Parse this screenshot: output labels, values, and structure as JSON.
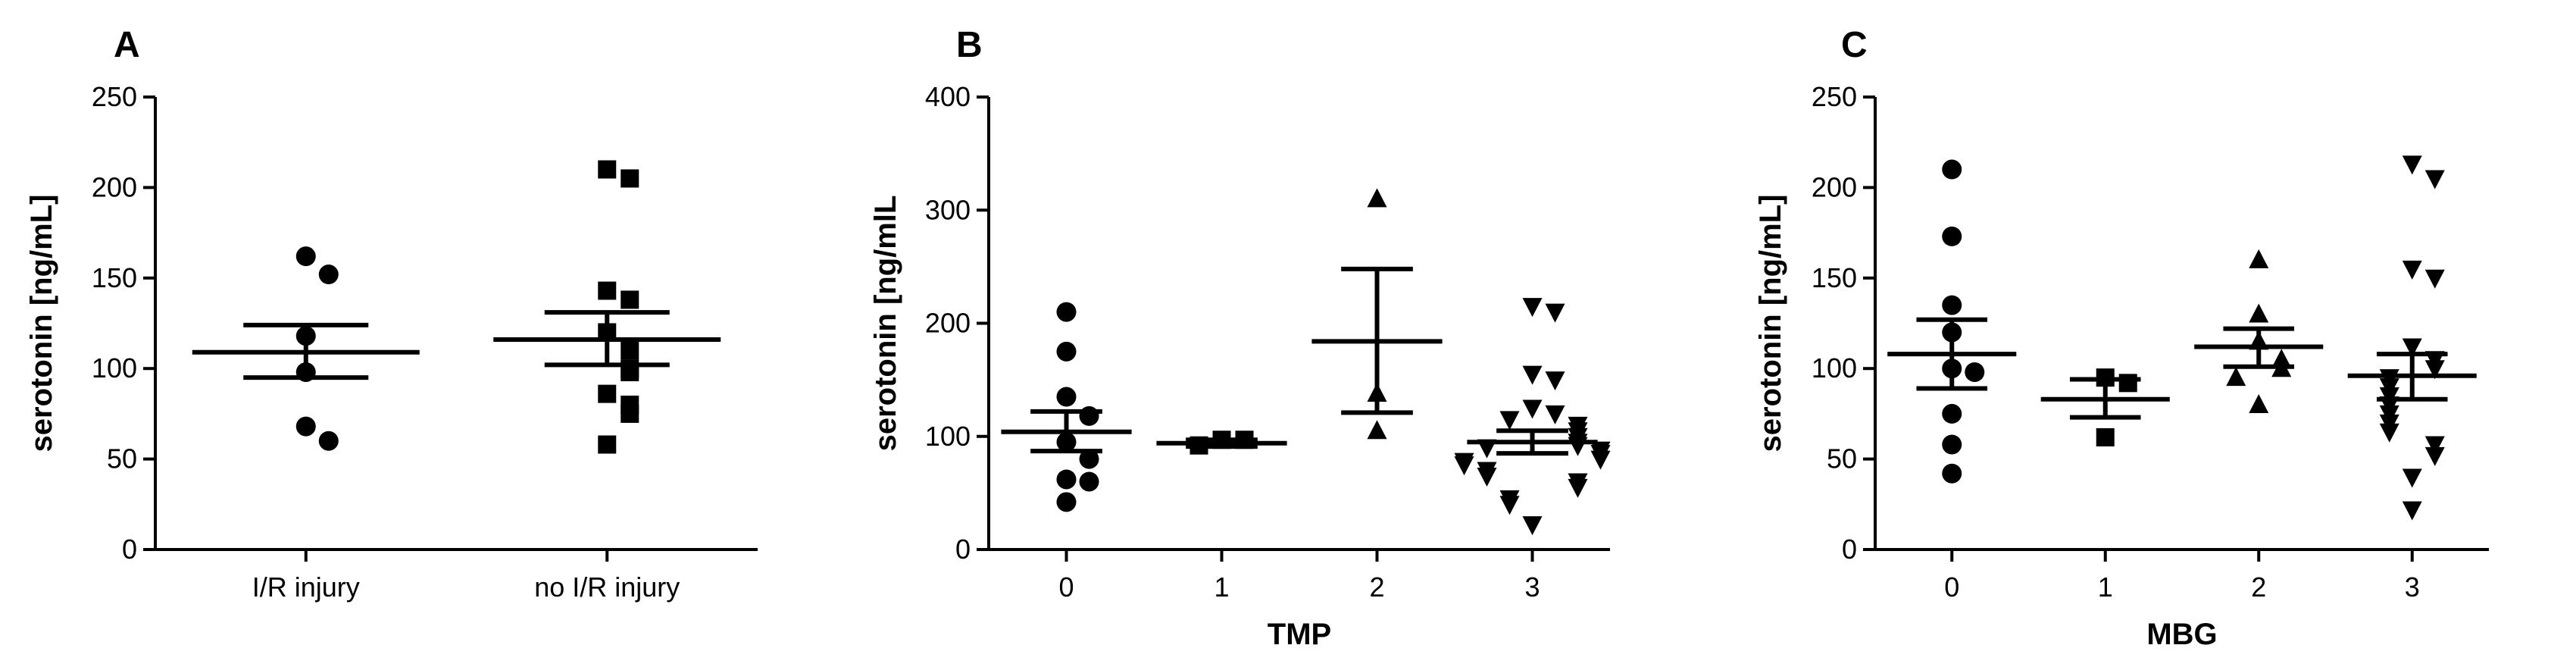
{
  "chart_data": [
    {
      "panel": "A",
      "type": "scatter",
      "marker": "circle",
      "ylabel": "serotonin [ng/mL]",
      "xlabel": "",
      "ylim": [
        0,
        250
      ],
      "yticks": [
        0,
        50,
        100,
        150,
        200,
        250
      ],
      "categories": [
        "I/R injury",
        "no I/R injury"
      ],
      "groups": [
        {
          "category": "I/R injury",
          "marker": "circle",
          "points": [
            162,
            152,
            118,
            98,
            68,
            60
          ],
          "mean": 109,
          "sem_low": 95,
          "sem_high": 124
        },
        {
          "category": "no I/R injury",
          "marker": "square",
          "points": [
            210,
            205,
            143,
            138,
            120,
            110,
            100,
            98,
            86,
            80,
            75,
            58
          ],
          "mean": 116,
          "sem_low": 102,
          "sem_high": 131
        }
      ]
    },
    {
      "panel": "B",
      "type": "scatter",
      "ylabel": "serotonin [ng/mlL",
      "xlabel": "TMP",
      "ylim": [
        0,
        400
      ],
      "yticks": [
        0,
        100,
        200,
        300,
        400
      ],
      "categories": [
        "0",
        "1",
        "2",
        "3"
      ],
      "groups": [
        {
          "category": "0",
          "marker": "circle",
          "points": [
            210,
            175,
            135,
            118,
            95,
            80,
            62,
            60,
            42
          ],
          "mean": 104,
          "sem_low": 87,
          "sem_high": 122
        },
        {
          "category": "1",
          "marker": "square",
          "points": [
            97,
            97,
            92
          ],
          "mean": 94,
          "sem_low": 91,
          "sem_high": 97
        },
        {
          "category": "2",
          "marker": "triangle-up",
          "points": [
            310,
            138,
            105
          ],
          "mean": 184,
          "sem_low": 121,
          "sem_high": 248
        },
        {
          "category": "3",
          "marker": "triangle-down",
          "points": [
            215,
            210,
            155,
            150,
            125,
            120,
            115,
            110,
            105,
            100,
            95,
            92,
            90,
            88,
            85,
            80,
            78,
            75,
            70,
            65,
            60,
            55,
            45,
            40,
            22
          ],
          "mean": 95,
          "sem_low": 85,
          "sem_high": 105
        }
      ]
    },
    {
      "panel": "C",
      "type": "scatter",
      "ylabel": "serotonin [ng/mL]",
      "xlabel": "MBG",
      "ylim": [
        0,
        250
      ],
      "yticks": [
        0,
        50,
        100,
        150,
        200,
        250
      ],
      "categories": [
        "0",
        "1",
        "2",
        "3"
      ],
      "groups": [
        {
          "category": "0",
          "marker": "circle",
          "points": [
            210,
            173,
            135,
            120,
            100,
            98,
            75,
            58,
            42
          ],
          "mean": 108,
          "sem_low": 89,
          "sem_high": 127
        },
        {
          "category": "1",
          "marker": "square",
          "points": [
            95,
            92,
            62
          ],
          "mean": 83,
          "sem_low": 73,
          "sem_high": 94
        },
        {
          "category": "2",
          "marker": "triangle-up",
          "points": [
            160,
            130,
            115,
            105,
            100,
            95,
            80
          ],
          "mean": 112,
          "sem_low": 101,
          "sem_high": 122
        },
        {
          "category": "3",
          "marker": "triangle-down",
          "points": [
            213,
            205,
            155,
            150,
            112,
            105,
            100,
            95,
            90,
            85,
            80,
            75,
            70,
            65,
            58,
            52,
            40,
            22
          ],
          "mean": 96,
          "sem_low": 83,
          "sem_high": 108
        }
      ]
    }
  ]
}
